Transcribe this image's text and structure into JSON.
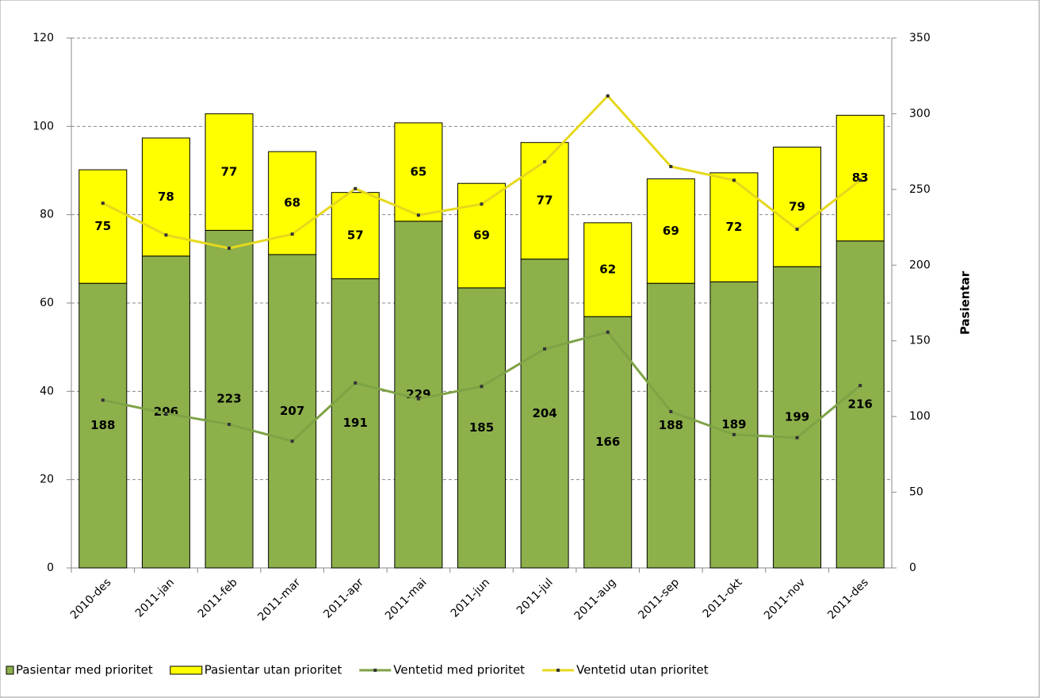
{
  "chart_data": {
    "type": "combo",
    "categories": [
      "2010-des",
      "2011-jan",
      "2011-feb",
      "2011-mar",
      "2011-apr",
      "2011-mai",
      "2011-jun",
      "2011-jul",
      "2011-aug",
      "2011-sep",
      "2011-okt",
      "2011-nov",
      "2011-des"
    ],
    "series": [
      {
        "name": "Pasientar med prioritet",
        "type": "bar",
        "axis": "y2",
        "color": "#8db04b",
        "values": [
          188,
          206,
          223,
          207,
          191,
          229,
          185,
          204,
          166,
          188,
          189,
          199,
          216
        ]
      },
      {
        "name": "Pasientar utan prioritet",
        "type": "bar",
        "axis": "y2",
        "color": "#ffff00",
        "values": [
          75,
          78,
          77,
          68,
          57,
          65,
          69,
          77,
          62,
          69,
          72,
          79,
          83
        ]
      },
      {
        "name": "Ventetid med prioritet",
        "type": "line",
        "color": "#7ea345",
        "values": [
          38,
          35,
          32.5,
          28.7,
          41.9,
          38.3,
          41.1,
          49.6,
          53.4,
          35.4,
          30.2,
          29.5,
          41.3
        ]
      },
      {
        "name": "Ventetid utan prioritet",
        "type": "line",
        "color": "#e6d81c",
        "values": [
          82.6,
          75.4,
          72.4,
          75.6,
          85.9,
          79.9,
          82.4,
          92,
          106.9,
          90.9,
          87.8,
          76.7,
          87.8
        ]
      }
    ],
    "ylim": [
      0,
      120
    ],
    "yticks": [
      0,
      20,
      40,
      60,
      80,
      100,
      120
    ],
    "y2lim": [
      0,
      350
    ],
    "y2ticks": [
      0,
      50,
      100,
      150,
      200,
      250,
      300,
      350
    ],
    "y2label": "Pasientar",
    "grid": true,
    "stacked": true,
    "legend": "bottom"
  }
}
